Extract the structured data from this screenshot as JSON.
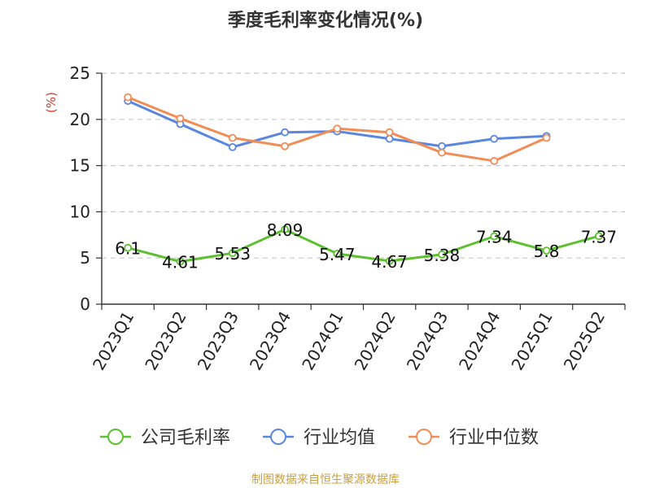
{
  "chart_data": {
    "type": "line",
    "title": "季度毛利率变化情况(%)",
    "ylabel": "(%)",
    "source": "制图数据来自恒生聚源数据库",
    "ylim": [
      0,
      25
    ],
    "yticks": [
      0,
      5,
      10,
      15,
      20,
      25
    ],
    "grid": true,
    "legend_position": "bottom",
    "categories": [
      "2023Q1",
      "2023Q2",
      "2023Q3",
      "2023Q4",
      "2024Q1",
      "2024Q2",
      "2024Q3",
      "2024Q4",
      "2025Q1",
      "2025Q2"
    ],
    "series": [
      {
        "name": "公司毛利率",
        "color": "#5cc030",
        "values": [
          6.1,
          4.61,
          5.53,
          8.09,
          5.47,
          4.67,
          5.38,
          7.34,
          5.8,
          7.37
        ],
        "data_labels": [
          "6.1",
          "4.61",
          "5.53",
          "8.09",
          "5.47",
          "4.67",
          "5.38",
          "7.34",
          "5.8",
          "7.37"
        ]
      },
      {
        "name": "行业均值",
        "color": "#5b86e0",
        "values": [
          22.0,
          19.5,
          17.0,
          18.6,
          18.7,
          17.9,
          17.1,
          17.9,
          18.2,
          null
        ]
      },
      {
        "name": "行业中位数",
        "color": "#f28c55",
        "values": [
          22.4,
          20.1,
          18.0,
          17.1,
          19.0,
          18.6,
          16.4,
          15.5,
          18.0,
          null
        ]
      }
    ]
  }
}
